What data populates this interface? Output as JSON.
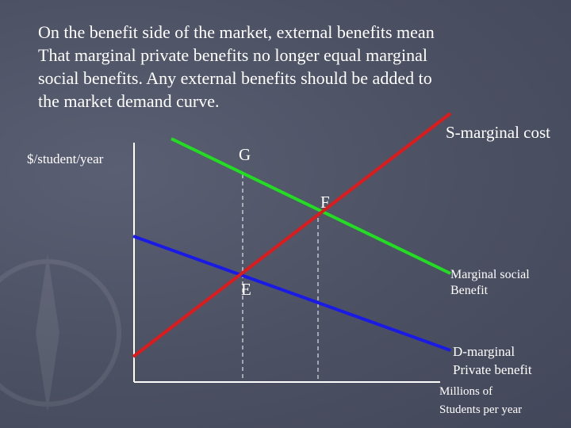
{
  "slide": {
    "paragraph": "On the benefit side of the market, external benefits mean\nThat marginal private benefits no longer equal marginal\nsocial benefits.  Any external benefits should be added to\nthe market demand curve."
  },
  "diagram": {
    "y_axis_label": "$/student/year",
    "x_axis_label": "Millions of\nStudents per year",
    "curves": {
      "supply": {
        "label": "S-marginal cost",
        "color": "#e01a1a"
      },
      "msb": {
        "label": "Marginal social\nBenefit",
        "color": "#22dd22"
      },
      "demand": {
        "label": "D-marginal\nPrivate benefit",
        "color": "#1a1ae6"
      }
    },
    "points": {
      "G": "G",
      "F": "F",
      "E": "E"
    },
    "axis_color": "#ffffff",
    "guide_color": "#ffffff"
  }
}
